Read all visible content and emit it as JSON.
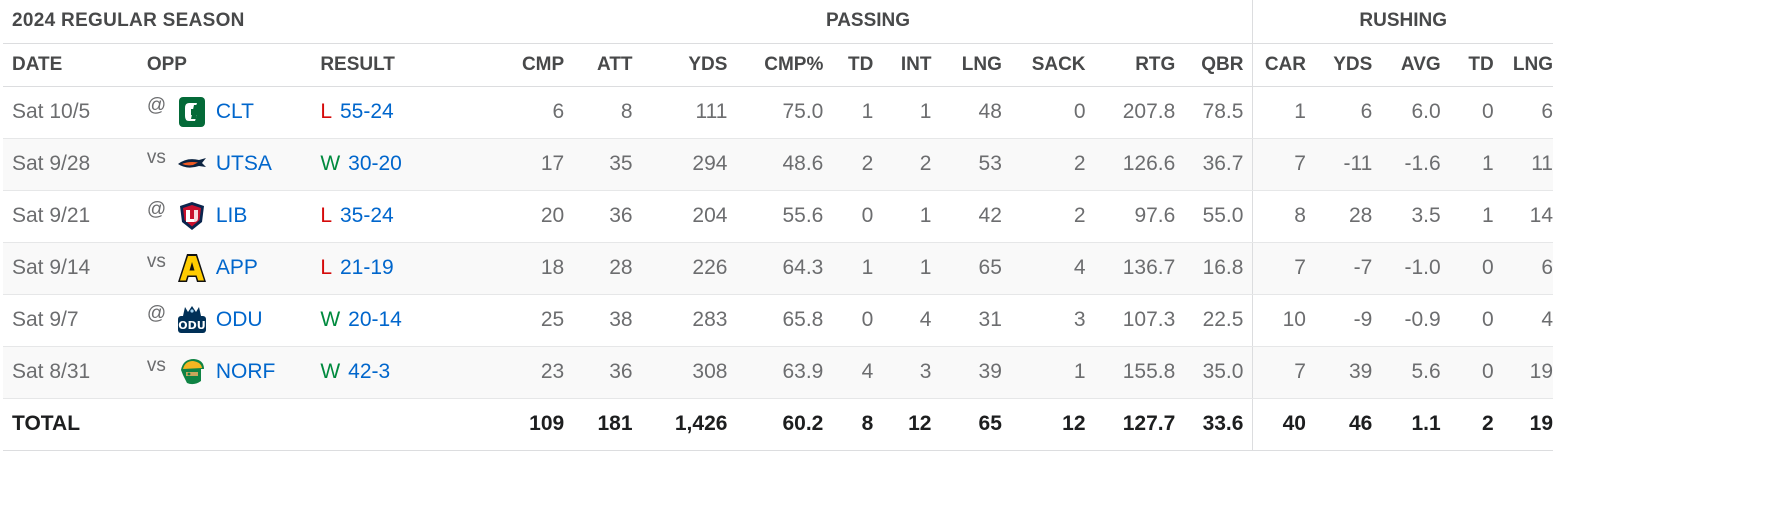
{
  "table": {
    "season_title": "2024 REGULAR SEASON",
    "group_passing": "PASSING",
    "group_rushing": "RUSHING",
    "columns": {
      "date": "DATE",
      "opp": "OPP",
      "result": "RESULT",
      "cmp": "CMP",
      "att": "ATT",
      "pass_yds": "YDS",
      "cmp_pct": "CMP%",
      "pass_td": "TD",
      "int": "INT",
      "pass_lng": "LNG",
      "sack": "SACK",
      "rtg": "RTG",
      "qbr": "QBR",
      "car": "CAR",
      "rush_yds": "YDS",
      "avg": "AVG",
      "rush_td": "TD",
      "rush_lng": "LNG"
    },
    "rows": [
      {
        "date": "Sat 10/5",
        "ha": "@",
        "opp": "CLT",
        "logo": "charlotte-logo-icon",
        "wl": "L",
        "score": "55-24",
        "cmp": "6",
        "att": "8",
        "pass_yds": "111",
        "cmp_pct": "75.0",
        "pass_td": "1",
        "int": "1",
        "pass_lng": "48",
        "sack": "0",
        "rtg": "207.8",
        "qbr": "78.5",
        "car": "1",
        "rush_yds": "6",
        "avg": "6.0",
        "rush_td": "0",
        "rush_lng": "6"
      },
      {
        "date": "Sat 9/28",
        "ha": "vs",
        "opp": "UTSA",
        "logo": "utsa-logo-icon",
        "wl": "W",
        "score": "30-20",
        "cmp": "17",
        "att": "35",
        "pass_yds": "294",
        "cmp_pct": "48.6",
        "pass_td": "2",
        "int": "2",
        "pass_lng": "53",
        "sack": "2",
        "rtg": "126.6",
        "qbr": "36.7",
        "car": "7",
        "rush_yds": "-11",
        "avg": "-1.6",
        "rush_td": "1",
        "rush_lng": "11"
      },
      {
        "date": "Sat 9/21",
        "ha": "@",
        "opp": "LIB",
        "logo": "liberty-logo-icon",
        "wl": "L",
        "score": "35-24",
        "cmp": "20",
        "att": "36",
        "pass_yds": "204",
        "cmp_pct": "55.6",
        "pass_td": "0",
        "int": "1",
        "pass_lng": "42",
        "sack": "2",
        "rtg": "97.6",
        "qbr": "55.0",
        "car": "8",
        "rush_yds": "28",
        "avg": "3.5",
        "rush_td": "1",
        "rush_lng": "14"
      },
      {
        "date": "Sat 9/14",
        "ha": "vs",
        "opp": "APP",
        "logo": "app-state-logo-icon",
        "wl": "L",
        "score": "21-19",
        "cmp": "18",
        "att": "28",
        "pass_yds": "226",
        "cmp_pct": "64.3",
        "pass_td": "1",
        "int": "1",
        "pass_lng": "65",
        "sack": "4",
        "rtg": "136.7",
        "qbr": "16.8",
        "car": "7",
        "rush_yds": "-7",
        "avg": "-1.0",
        "rush_td": "0",
        "rush_lng": "6"
      },
      {
        "date": "Sat 9/7",
        "ha": "@",
        "opp": "ODU",
        "logo": "odu-logo-icon",
        "wl": "W",
        "score": "20-14",
        "cmp": "25",
        "att": "38",
        "pass_yds": "283",
        "cmp_pct": "65.8",
        "pass_td": "0",
        "int": "4",
        "pass_lng": "31",
        "sack": "3",
        "rtg": "107.3",
        "qbr": "22.5",
        "car": "10",
        "rush_yds": "-9",
        "avg": "-0.9",
        "rush_td": "0",
        "rush_lng": "4"
      },
      {
        "date": "Sat 8/31",
        "ha": "vs",
        "opp": "NORF",
        "logo": "norfolk-state-logo-icon",
        "wl": "W",
        "score": "42-3",
        "cmp": "23",
        "att": "36",
        "pass_yds": "308",
        "cmp_pct": "63.9",
        "pass_td": "4",
        "int": "3",
        "pass_lng": "39",
        "sack": "1",
        "rtg": "155.8",
        "qbr": "35.0",
        "car": "7",
        "rush_yds": "39",
        "avg": "5.6",
        "rush_td": "0",
        "rush_lng": "19"
      }
    ],
    "total": {
      "label": "TOTAL",
      "cmp": "109",
      "att": "181",
      "pass_yds": "1,426",
      "cmp_pct": "60.2",
      "pass_td": "8",
      "int": "12",
      "pass_lng": "65",
      "sack": "12",
      "rtg": "127.7",
      "qbr": "33.6",
      "car": "40",
      "rush_yds": "46",
      "avg": "1.1",
      "rush_td": "2",
      "rush_lng": "19"
    },
    "colors": {
      "loss": "#d50a0a",
      "win": "#008a3e",
      "link": "#0066cc"
    }
  }
}
